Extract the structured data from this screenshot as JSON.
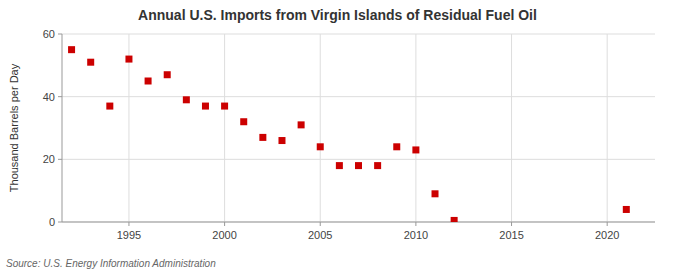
{
  "chart_data": {
    "type": "scatter",
    "title": "Annual U.S. Imports from Virgin Islands of Residual Fuel Oil",
    "ylabel": "Thousand Barrels per Day",
    "source": "Source: U.S. Energy Information Administration",
    "x": [
      1992,
      1993,
      1994,
      1995,
      1996,
      1997,
      1998,
      1999,
      2000,
      2001,
      2002,
      2003,
      2004,
      2005,
      2006,
      2007,
      2008,
      2009,
      2010,
      2011,
      2012,
      2021
    ],
    "values": [
      55,
      51,
      37,
      52,
      45,
      47,
      39,
      37,
      37,
      32,
      27,
      26,
      31,
      24,
      18,
      18,
      18,
      24,
      23,
      9,
      0.5,
      4
    ],
    "color": "#cc0000",
    "marker": "square",
    "xlim": [
      1991.5,
      2022.5
    ],
    "ylim": [
      0,
      60
    ],
    "xticks": [
      1995,
      2000,
      2005,
      2010,
      2015,
      2020
    ],
    "yticks": [
      0,
      20,
      40,
      60
    ],
    "grid": true
  }
}
